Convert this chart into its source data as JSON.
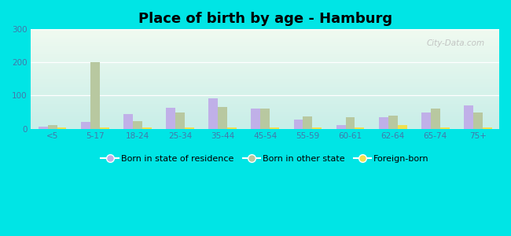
{
  "title": "Place of birth by age - Hamburg",
  "categories": [
    "<5",
    "5-17",
    "18-24",
    "25-34",
    "35-44",
    "45-54",
    "55-59",
    "60-61",
    "62-64",
    "65-74",
    "75+"
  ],
  "born_in_state": [
    5,
    20,
    45,
    63,
    92,
    60,
    28,
    10,
    35,
    48,
    70
  ],
  "born_other_state": [
    10,
    200,
    22,
    50,
    65,
    60,
    38,
    35,
    40,
    60,
    50
  ],
  "foreign_born": [
    3,
    3,
    3,
    3,
    4,
    3,
    3,
    3,
    10,
    3,
    3
  ],
  "bar_color_state": "#c0b0e8",
  "bar_color_other": "#b8c8a0",
  "bar_color_foreign": "#f0e050",
  "bg_color_topleft": "#f0faf0",
  "bg_color_bottomright": "#c8eee8",
  "outer_bg": "#00e5e5",
  "ylim": [
    0,
    300
  ],
  "yticks": [
    0,
    100,
    200,
    300
  ],
  "title_fontsize": 13,
  "legend_fontsize": 8,
  "tick_fontsize": 7.5
}
